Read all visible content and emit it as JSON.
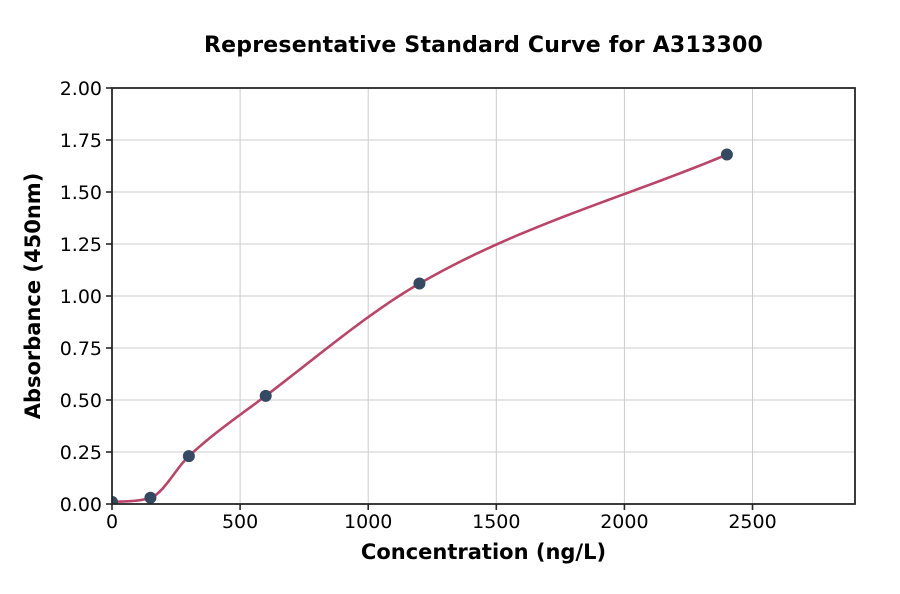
{
  "chart_data": {
    "type": "scatter",
    "title": "Representative Standard Curve for A313300",
    "xlabel": "Concentration (ng/L)",
    "ylabel": "Absorbance (450nm)",
    "series": [
      {
        "name": "standard-points",
        "type": "scatter",
        "x": [
          0,
          150,
          300,
          600,
          1200,
          2400
        ],
        "y": [
          0.01,
          0.03,
          0.23,
          0.52,
          1.06,
          1.68
        ]
      },
      {
        "name": "fit-curve",
        "type": "line",
        "description": "smooth sigmoidal fit through the standard points, drawn from 0 to 2400"
      }
    ],
    "xlim": [
      0,
      2900
    ],
    "ylim": [
      0,
      2.0
    ],
    "x_ticks": {
      "values": [
        0,
        500,
        1000,
        1500,
        2000,
        2500
      ],
      "labels": [
        "0",
        "500",
        "1000",
        "1500",
        "2000",
        "2500"
      ]
    },
    "y_ticks": {
      "values": [
        0,
        0.25,
        0.5,
        0.75,
        1.0,
        1.25,
        1.5,
        1.75,
        2.0
      ],
      "labels": [
        "0.00",
        "0.25",
        "0.50",
        "0.75",
        "1.00",
        "1.25",
        "1.50",
        "1.75",
        "2.00"
      ]
    },
    "grid": true,
    "legend": false,
    "colors": {
      "marker": "#334a62",
      "curve": "#bc4468",
      "grid": "#cccccc",
      "axis": "#262626",
      "text": "#000000",
      "background": "#ffffff"
    }
  }
}
